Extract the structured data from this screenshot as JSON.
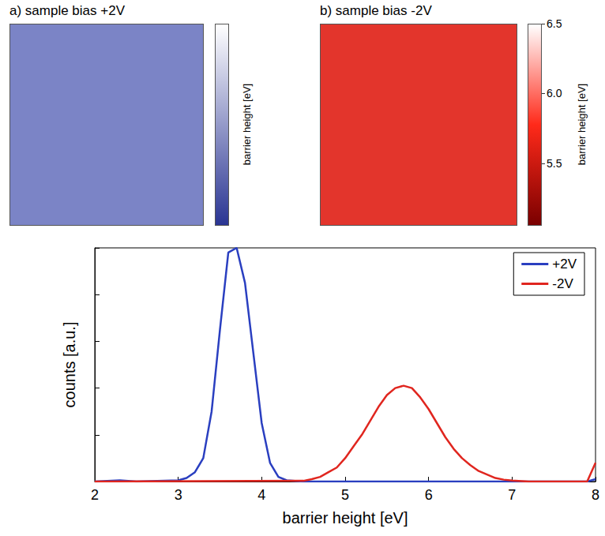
{
  "chart_data": [
    {
      "type": "image",
      "title": "a) sample bias +2V",
      "color": "#7b84c6",
      "colorbar": {
        "label": "barrier height [eV]",
        "colors": [
          "#2a3593",
          "#ffffff"
        ]
      }
    },
    {
      "type": "image",
      "title": "b) sample bias -2V",
      "color": "#e3352c",
      "colorbar": {
        "label": "barrier height [eV]",
        "lim": [
          5.05,
          6.5
        ],
        "ticks": [
          5.5,
          {
            "value": 6,
            "label": "6.0"
          },
          6.5
        ],
        "colors": [
          "#7a0000",
          "#ff2a1a",
          "#ffffff"
        ]
      }
    },
    {
      "type": "line",
      "xlabel": "barrier height [eV]",
      "ylabel": "counts [a.u.]",
      "xlim": [
        2,
        8
      ],
      "xticks": [
        2,
        3,
        4,
        5,
        6,
        7,
        8
      ],
      "ylim": [
        0,
        1
      ],
      "yticks": [
        0,
        0.2,
        0.4,
        0.6,
        0.8,
        1.0
      ],
      "tick_labels": "x",
      "grid": false,
      "legend": "top-right",
      "series": [
        {
          "name": "+2V",
          "color": "#2a3fc0",
          "x": [
            2.0,
            2.3,
            2.5,
            3.0,
            3.1,
            3.2,
            3.3,
            3.4,
            3.5,
            3.6,
            3.7,
            3.8,
            3.9,
            4.0,
            4.1,
            4.2,
            4.3,
            4.5,
            7.9,
            8.0
          ],
          "values": [
            0,
            0.005,
            0,
            0.005,
            0.015,
            0.04,
            0.1,
            0.3,
            0.65,
            0.98,
            1.0,
            0.85,
            0.55,
            0.25,
            0.08,
            0.02,
            0.005,
            0,
            0,
            0.01
          ]
        },
        {
          "name": "-2V",
          "color": "#e0261f",
          "x": [
            2.0,
            4.5,
            4.6,
            4.7,
            4.8,
            4.9,
            5.0,
            5.1,
            5.2,
            5.3,
            5.4,
            5.5,
            5.6,
            5.7,
            5.8,
            5.9,
            6.0,
            6.1,
            6.2,
            6.3,
            6.4,
            6.5,
            6.6,
            6.7,
            6.8,
            6.9,
            7.0,
            7.2,
            7.9,
            8.0
          ],
          "values": [
            0,
            0.003,
            0.01,
            0.02,
            0.04,
            0.06,
            0.1,
            0.15,
            0.2,
            0.26,
            0.32,
            0.37,
            0.4,
            0.41,
            0.4,
            0.36,
            0.31,
            0.25,
            0.19,
            0.14,
            0.1,
            0.07,
            0.045,
            0.03,
            0.015,
            0.008,
            0.004,
            0,
            0,
            0.08
          ]
        }
      ]
    }
  ]
}
